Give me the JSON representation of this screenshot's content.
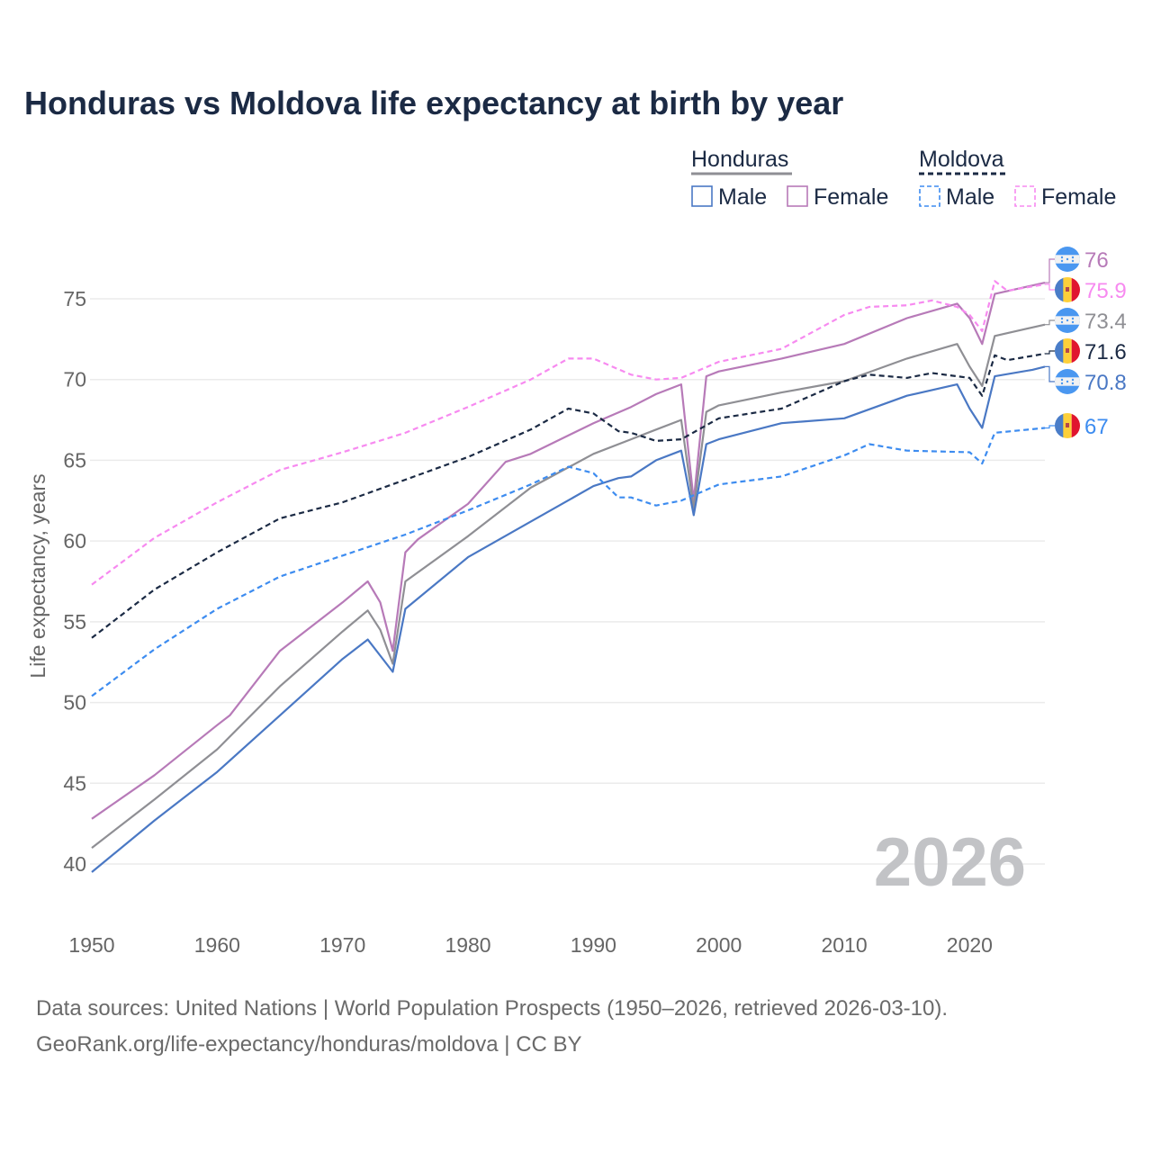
{
  "chart_data": {
    "type": "line",
    "title": "Honduras vs Moldova life expectancy at birth by year",
    "xlabel": "",
    "ylabel": "Life expectancy, years",
    "xlim": [
      1950,
      2026
    ],
    "ylim": [
      37.5,
      78
    ],
    "x_ticks": [
      1950,
      1960,
      1970,
      1980,
      1990,
      2000,
      2010,
      2020
    ],
    "y_ticks": [
      40,
      45,
      50,
      55,
      60,
      65,
      70,
      75
    ],
    "grid": true,
    "current_year": "2026",
    "legend": {
      "placement": "top-right",
      "groups": [
        {
          "country": "Honduras",
          "items": [
            "Male",
            "Female"
          ]
        },
        {
          "country": "Moldova",
          "items": [
            "Male",
            "Female"
          ]
        }
      ]
    },
    "series": [
      {
        "name": "Honduras Female",
        "country": "Honduras",
        "color": "#b77ab8",
        "dashed": false,
        "end_label": "76",
        "x": [
          1950,
          1955,
          1960,
          1961,
          1965,
          1970,
          1972,
          1973,
          1974,
          1975,
          1976,
          1980,
          1983,
          1985,
          1990,
          1993,
          1995,
          1997,
          1998,
          1999,
          2000,
          2005,
          2010,
          2015,
          2019,
          2020,
          2021,
          2022,
          2026
        ],
        "y": [
          42.8,
          45.5,
          48.6,
          49.2,
          53.2,
          56.2,
          57.5,
          56.2,
          53.2,
          59.3,
          60.1,
          62.3,
          64.9,
          65.4,
          67.3,
          68.3,
          69.1,
          69.7,
          62.5,
          70.2,
          70.5,
          71.3,
          72.2,
          73.8,
          74.7,
          73.8,
          72.2,
          75.3,
          76.0
        ]
      },
      {
        "name": "Moldova Female",
        "country": "Moldova",
        "color": "#f78af0",
        "dashed": true,
        "end_label": "75.9",
        "x": [
          1950,
          1955,
          1960,
          1965,
          1970,
          1975,
          1980,
          1985,
          1988,
          1990,
          1993,
          1995,
          1997,
          2000,
          2005,
          2010,
          2012,
          2015,
          2017,
          2019,
          2020,
          2021,
          2022,
          2023,
          2026
        ],
        "y": [
          57.3,
          60.2,
          62.4,
          64.4,
          65.5,
          66.7,
          68.3,
          70.0,
          71.3,
          71.3,
          70.3,
          70.0,
          70.1,
          71.1,
          71.9,
          74.0,
          74.5,
          74.6,
          74.9,
          74.5,
          74.0,
          73.0,
          76.1,
          75.5,
          75.9
        ]
      },
      {
        "name": "Honduras",
        "country": "Honduras",
        "color": "#8f8f94",
        "dashed": false,
        "end_label": "73.4",
        "x": [
          1950,
          1955,
          1960,
          1965,
          1970,
          1972,
          1973,
          1974,
          1975,
          1980,
          1985,
          1990,
          1993,
          1995,
          1997,
          1998,
          1999,
          2000,
          2005,
          2010,
          2015,
          2019,
          2020,
          2021,
          2022,
          2026
        ],
        "y": [
          41.0,
          44.0,
          47.1,
          51.0,
          54.4,
          55.7,
          54.5,
          52.4,
          57.5,
          60.3,
          63.3,
          65.4,
          66.3,
          66.9,
          67.5,
          62.0,
          68.0,
          68.4,
          69.2,
          69.9,
          71.3,
          72.2,
          70.8,
          69.6,
          72.7,
          73.4
        ]
      },
      {
        "name": "Moldova",
        "country": "Moldova",
        "color": "#1b2a44",
        "dashed": true,
        "end_label": "71.6",
        "x": [
          1950,
          1955,
          1960,
          1965,
          1970,
          1975,
          1980,
          1985,
          1988,
          1990,
          1992,
          1993,
          1995,
          1997,
          2000,
          2005,
          2010,
          2012,
          2015,
          2017,
          2020,
          2021,
          2022,
          2023,
          2026
        ],
        "y": [
          54.0,
          57.0,
          59.3,
          61.4,
          62.4,
          63.8,
          65.2,
          66.9,
          68.2,
          67.9,
          66.8,
          66.7,
          66.2,
          66.3,
          67.6,
          68.2,
          69.9,
          70.3,
          70.1,
          70.4,
          70.1,
          69.0,
          71.5,
          71.2,
          71.6
        ]
      },
      {
        "name": "Honduras Male",
        "country": "Honduras",
        "color": "#4a78c4",
        "dashed": false,
        "end_label": "70.8",
        "x": [
          1950,
          1955,
          1960,
          1965,
          1970,
          1972,
          1973,
          1974,
          1975,
          1980,
          1985,
          1990,
          1992,
          1993,
          1995,
          1997,
          1998,
          1999,
          2000,
          2005,
          2010,
          2015,
          2019,
          2020,
          2021,
          2022,
          2025,
          2026
        ],
        "y": [
          39.5,
          42.7,
          45.7,
          49.2,
          52.7,
          53.9,
          52.9,
          51.9,
          55.8,
          59.0,
          61.2,
          63.4,
          63.9,
          64.0,
          65.0,
          65.6,
          61.6,
          66.0,
          66.3,
          67.3,
          67.6,
          69.0,
          69.7,
          68.2,
          67.0,
          70.2,
          70.6,
          70.8
        ]
      },
      {
        "name": "Moldova Male",
        "country": "Moldova",
        "color": "#3d8cf0",
        "dashed": true,
        "end_label": "67",
        "x": [
          1950,
          1955,
          1960,
          1965,
          1970,
          1975,
          1980,
          1985,
          1988,
          1990,
          1992,
          1993,
          1995,
          1997,
          2000,
          2005,
          2010,
          2012,
          2015,
          2020,
          2021,
          2022,
          2026
        ],
        "y": [
          50.4,
          53.3,
          55.8,
          57.8,
          59.1,
          60.4,
          61.9,
          63.5,
          64.6,
          64.2,
          62.7,
          62.7,
          62.2,
          62.5,
          63.5,
          64.0,
          65.3,
          66.0,
          65.6,
          65.5,
          64.8,
          66.7,
          67.0
        ]
      }
    ]
  },
  "footer": {
    "line1": "Data sources: United Nations | World Population Prospects (1950–2026, retrieved 2026-03-10).",
    "line2": "GeoRank.org/life-expectancy/honduras/moldova | CC BY"
  }
}
